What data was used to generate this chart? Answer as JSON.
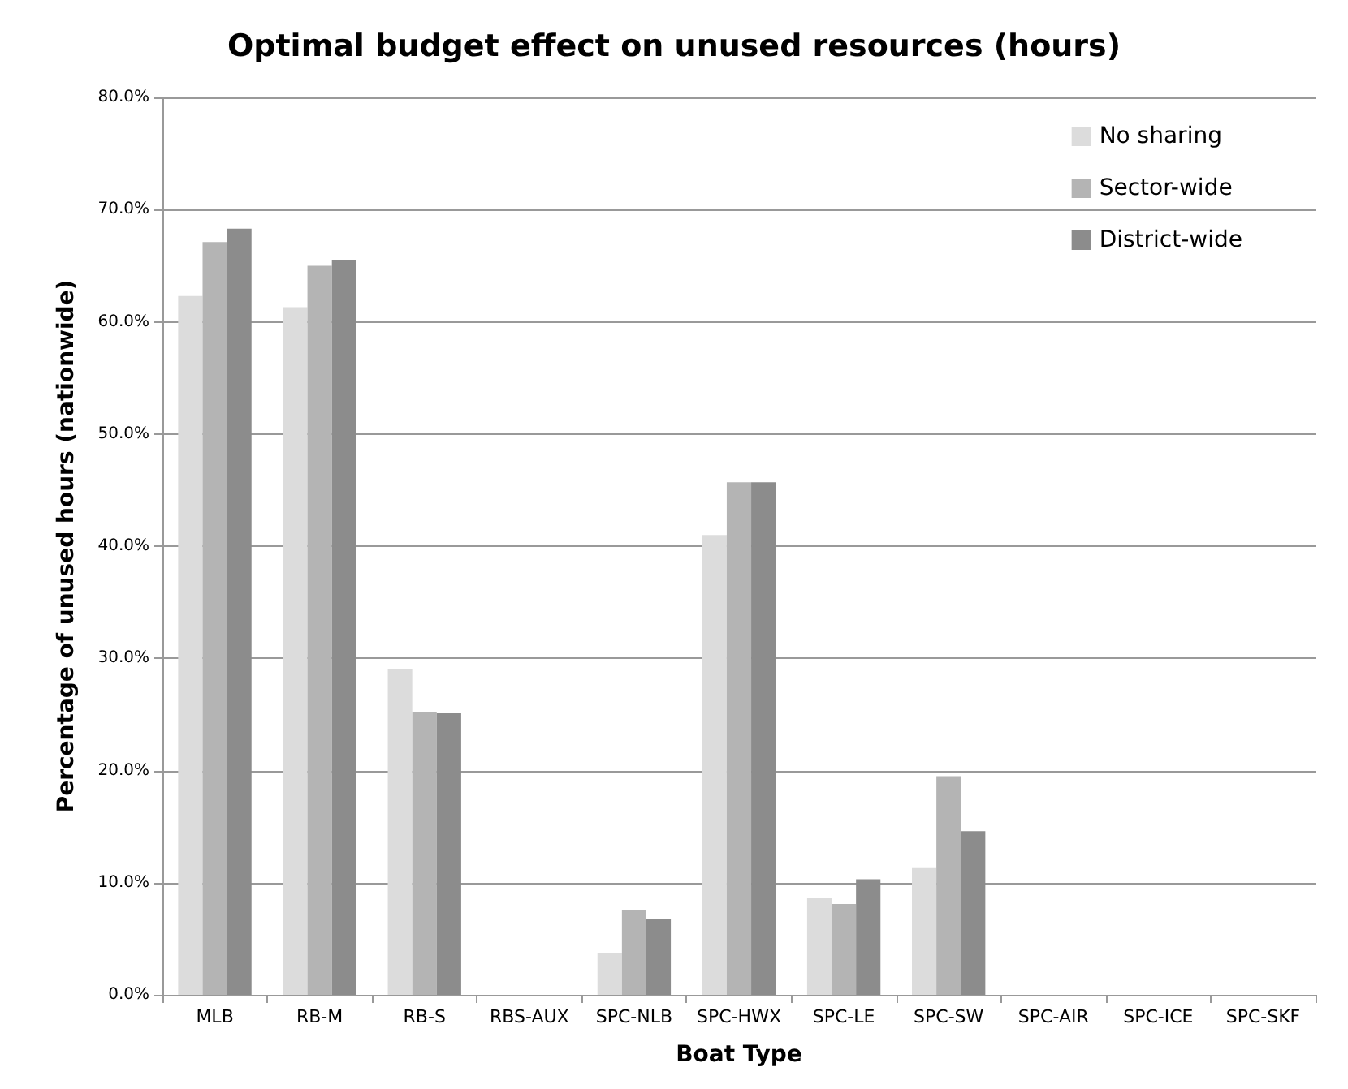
{
  "chart_data": {
    "type": "bar",
    "title": "Optimal budget effect on unused resources (hours)",
    "xlabel": "Boat Type",
    "ylabel": "Percentage of unused hours (nationwide)",
    "categories": [
      "MLB",
      "RB-M",
      "RB-S",
      "RBS-AUX",
      "SPC-NLB",
      "SPC-HWX",
      "SPC-LE",
      "SPC-SW",
      "SPC-AIR",
      "SPC-ICE",
      "SPC-SKF"
    ],
    "series": [
      {
        "name": "No sharing",
        "color": "#dcdcdc",
        "values": [
          62.3,
          61.3,
          29.0,
          0,
          3.7,
          41.0,
          8.6,
          11.3,
          0,
          0,
          0
        ]
      },
      {
        "name": "Sector-wide",
        "color": "#b4b4b4",
        "values": [
          67.1,
          65.0,
          25.2,
          0,
          7.6,
          45.7,
          8.1,
          19.5,
          0,
          0,
          0
        ]
      },
      {
        "name": "District-wide",
        "color": "#8c8c8c",
        "values": [
          68.3,
          65.5,
          25.1,
          0,
          6.8,
          45.7,
          10.3,
          14.6,
          0,
          0,
          0
        ]
      }
    ],
    "ylim": [
      0,
      80
    ],
    "yticks": [
      {
        "value": 0,
        "label": "0.0%"
      },
      {
        "value": 10,
        "label": "10.0%"
      },
      {
        "value": 20,
        "label": "20.0%"
      },
      {
        "value": 30,
        "label": "30.0%"
      },
      {
        "value": 40,
        "label": "40.0%"
      },
      {
        "value": 50,
        "label": "50.0%"
      },
      {
        "value": 60,
        "label": "60.0%"
      },
      {
        "value": 70,
        "label": "70.0%"
      },
      {
        "value": 80,
        "label": "80.0%"
      }
    ],
    "grid": "y",
    "legend": "top right"
  }
}
